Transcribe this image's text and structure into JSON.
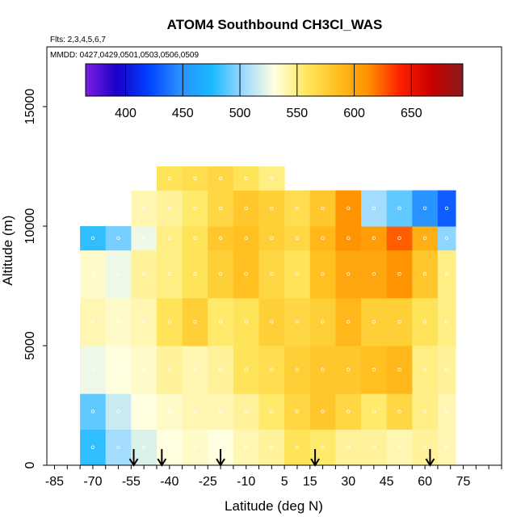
{
  "chart_data": {
    "type": "heatmap",
    "title": "ATOM4 Southbound CH3Cl_WAS",
    "flights_label": "Flts: 2,3,4,5,6,7",
    "dates_label": "MMDD: 0427,0429,0501,0503,0506,0509",
    "xlabel": "Latitude (deg N)",
    "ylabel": "Altitude (m)",
    "xlim": [
      -88,
      90
    ],
    "ylim": [
      0,
      17500
    ],
    "x_ticks": [
      "-85",
      "-70",
      "-55",
      "-40",
      "-25",
      "-10",
      "5",
      "15",
      "30",
      "45",
      "60",
      "75"
    ],
    "x_tick_values": [
      -85,
      -70,
      -55,
      -40,
      -25,
      -10,
      5,
      15,
      30,
      45,
      60,
      75
    ],
    "y_ticks": [
      "0",
      "5000",
      "10000",
      "15000"
    ],
    "y_tick_values": [
      0,
      5000,
      10000,
      15000
    ],
    "colorbar": {
      "range": [
        365,
        695
      ],
      "ticks": [
        "400",
        "450",
        "500",
        "550",
        "600",
        "650"
      ],
      "tick_values": [
        400,
        450,
        500,
        550,
        600,
        650
      ],
      "colors": [
        "#7a1fe0",
        "#1a00c8",
        "#0040ff",
        "#2a8fff",
        "#1ab8ff",
        "#9ad8ff",
        "#ffffe0",
        "#ffe860",
        "#ffc020",
        "#ff9000",
        "#ff2000",
        "#c80000",
        "#8a1a1a"
      ]
    },
    "flight_markers_lat": [
      -54,
      -43,
      -20,
      17,
      62
    ],
    "field": {
      "lat_edges": [
        -75,
        -65,
        -55,
        -45,
        -35,
        -25,
        -15,
        -5,
        5,
        15,
        25,
        35,
        45,
        55,
        65,
        72
      ],
      "alt_bands": [
        {
          "bottom": 0,
          "top": 1500,
          "values": [
            480,
            505,
            520,
            530,
            535,
            530,
            540,
            545,
            560,
            555,
            545,
            545,
            540,
            545,
            540
          ]
        },
        {
          "bottom": 1500,
          "top": 3000,
          "values": [
            490,
            515,
            530,
            535,
            540,
            540,
            545,
            555,
            570,
            580,
            570,
            555,
            570,
            550,
            540
          ]
        },
        {
          "bottom": 3000,
          "top": 5000,
          "values": [
            525,
            530,
            535,
            545,
            540,
            545,
            560,
            565,
            575,
            580,
            580,
            585,
            590,
            550,
            545
          ]
        },
        {
          "bottom": 5000,
          "top": 7000,
          "values": [
            540,
            535,
            540,
            560,
            575,
            555,
            560,
            575,
            570,
            575,
            590,
            575,
            575,
            560,
            550
          ]
        },
        {
          "bottom": 7000,
          "top": 9000,
          "values": [
            535,
            525,
            545,
            550,
            560,
            575,
            585,
            570,
            560,
            585,
            600,
            600,
            610,
            580,
            550
          ]
        },
        {
          "bottom": 9000,
          "top": 10000,
          "values": [
            480,
            495,
            525,
            550,
            560,
            580,
            585,
            575,
            570,
            590,
            610,
            605,
            625,
            595,
            500
          ]
        },
        {
          "bottom": 10000,
          "top": 11500,
          "values": [
            null,
            null,
            540,
            545,
            555,
            570,
            580,
            575,
            565,
            580,
            610,
            505,
            490,
            450,
            430
          ]
        },
        {
          "bottom": 11500,
          "top": 12500,
          "values": [
            null,
            null,
            null,
            560,
            565,
            570,
            560,
            550,
            null,
            null,
            null,
            null,
            null,
            null,
            null
          ]
        }
      ]
    }
  }
}
